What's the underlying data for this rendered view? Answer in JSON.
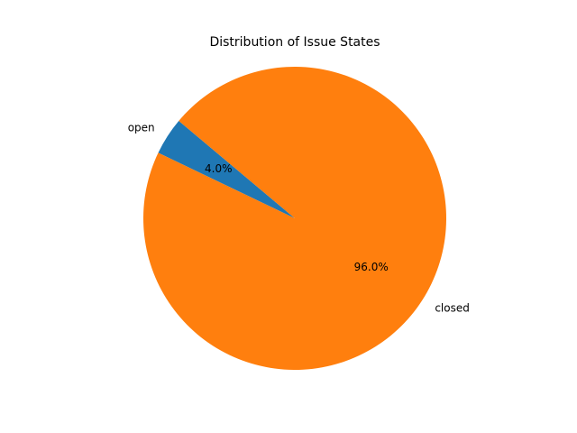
{
  "chart_data": {
    "type": "pie",
    "title": "Distribution of Issue States",
    "slices": [
      {
        "label": "open",
        "value": 4.0,
        "pct_label": "4.0%",
        "color": "#1f77b4"
      },
      {
        "label": "closed",
        "value": 96.0,
        "pct_label": "96.0%",
        "color": "#ff7f0e"
      }
    ],
    "start_angle_deg": 140,
    "direction": "counterclockwise",
    "legend": "none"
  }
}
